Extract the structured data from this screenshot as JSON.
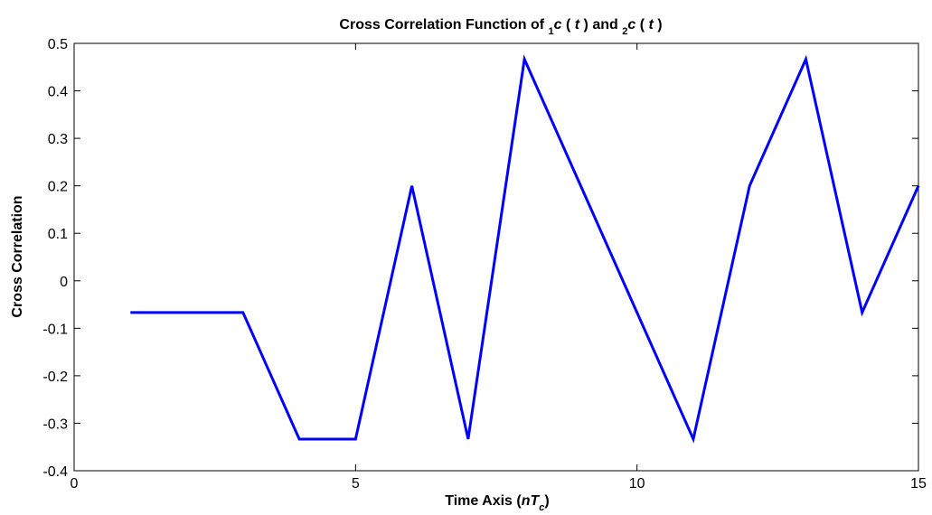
{
  "chart_data": {
    "type": "line",
    "title": {
      "prefix": "Cross Correlation Function of ",
      "sub1": "1",
      "c1": "c",
      "mid1": " ( ",
      "t1": "t",
      "mid2": " ) and ",
      "sub2": "2",
      "c2": "c",
      "mid3": " ( ",
      "t2": "t",
      "suffix": " )"
    },
    "xlabel": {
      "prefix": "Time Axis (",
      "n": "n",
      "T": "T",
      "sub": "c",
      "suffix": ")"
    },
    "ylabel": "Cross Correlation",
    "xlim": [
      0,
      15
    ],
    "ylim": [
      -0.4,
      0.5
    ],
    "xticks": [
      0,
      5,
      10,
      15
    ],
    "xtick_labels": [
      "0",
      "5",
      "10",
      "15"
    ],
    "yticks": [
      -0.4,
      -0.3,
      -0.2,
      -0.1,
      0,
      0.1,
      0.2,
      0.3,
      0.4,
      0.5
    ],
    "ytick_labels": [
      "-0.4",
      "-0.3",
      "-0.2",
      "-0.1",
      "0",
      "0.1",
      "0.2",
      "0.3",
      "0.4",
      "0.5"
    ],
    "grid": false,
    "series": [
      {
        "color": "#0000ff",
        "x": [
          1,
          2,
          3,
          4,
          5,
          6,
          7,
          8,
          9,
          10,
          11,
          12,
          13,
          14,
          15
        ],
        "y": [
          -0.0667,
          -0.0667,
          -0.0667,
          -0.3333,
          -0.3333,
          0.2,
          -0.3333,
          0.4667,
          0.2,
          -0.0667,
          -0.3333,
          0.2,
          0.4667,
          -0.0667,
          0.2
        ]
      }
    ]
  }
}
